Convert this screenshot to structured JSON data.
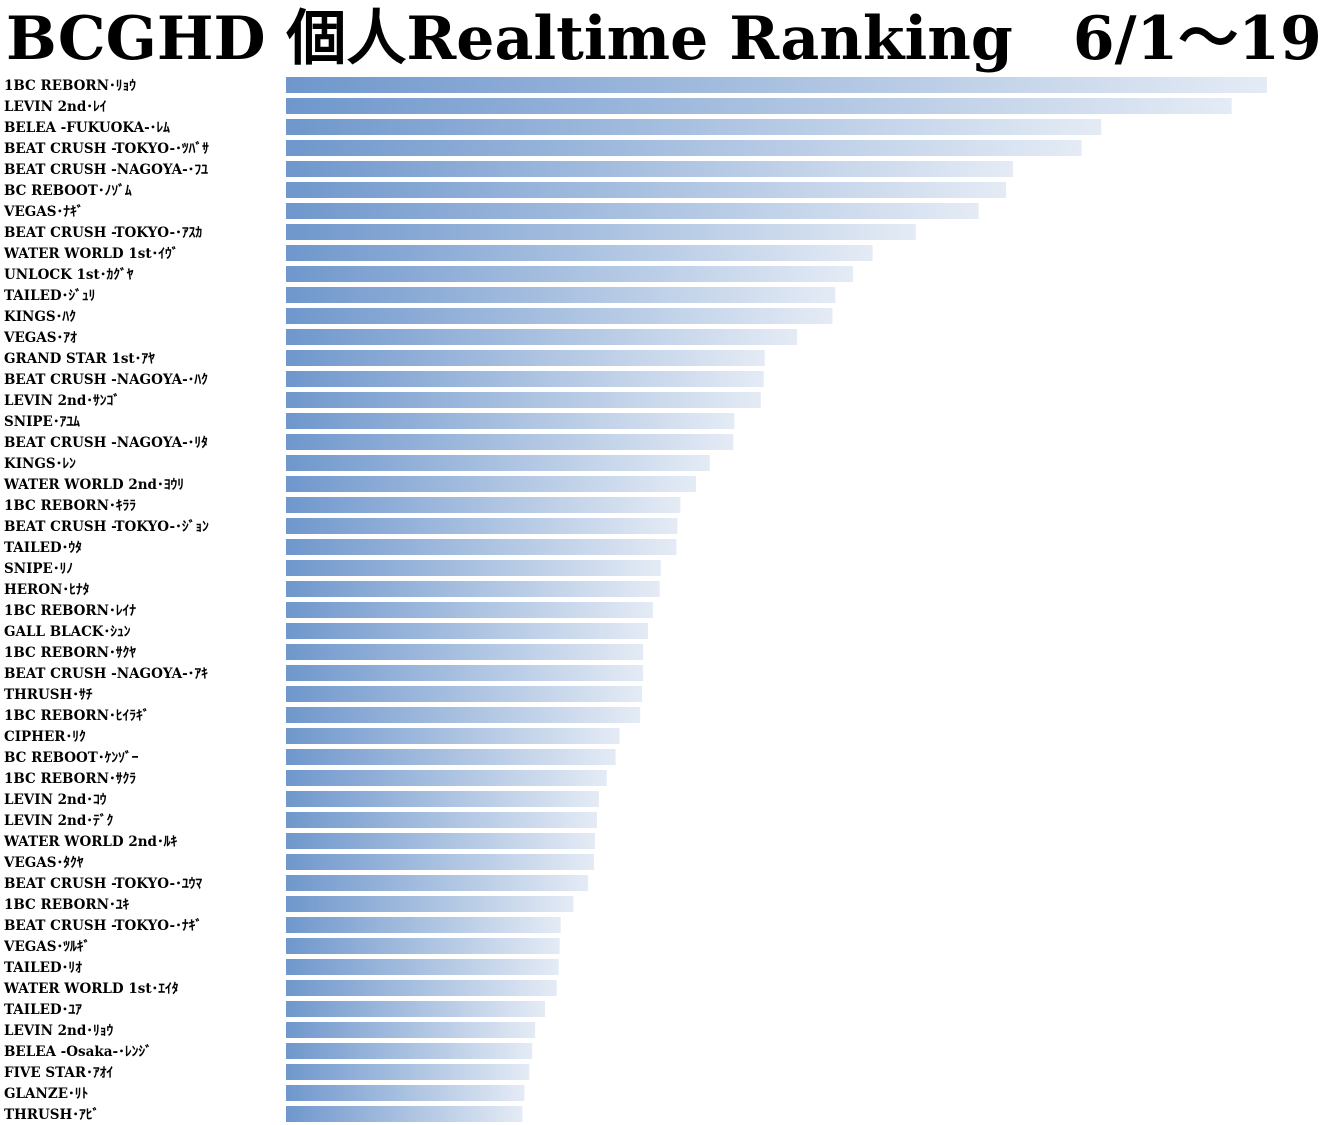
{
  "chart_data": {
    "type": "bar",
    "orientation": "horizontal",
    "title": "BCGHD 個人Realtime Ranking　6/1～19",
    "bar_gradient": [
      "#6f97cc",
      "#e4ebf5"
    ],
    "grid": false,
    "legend": "none",
    "xlim": [
      0,
      100
    ],
    "categories": [
      "1BC REBORN･ﾘｮｳ",
      "LEVIN 2nd･ﾚｲ",
      "BELEA -FUKUOKA-･ﾚﾑ",
      "BEAT CRUSH -TOKYO-･ﾂﾊﾞｻ",
      "BEAT CRUSH -NAGOYA-･ﾌﾕ",
      "BC REBOOT･ﾉｿﾞﾑ",
      "VEGAS･ﾅｷﾞ",
      "BEAT CRUSH -TOKYO-･ｱｽｶ",
      "WATER WORLD 1st･ｲｳﾞ",
      "UNLOCK 1st･ｶｸﾞﾔ",
      "TAILED･ｼﾞｭﾘ",
      "KINGS･ﾊｸ",
      "VEGAS･ｱｵ",
      "GRAND STAR 1st･ｱﾔ",
      "BEAT CRUSH -NAGOYA-･ﾊｸ",
      "LEVIN 2nd･ｻﾝｺﾞ",
      "SNIPE･ｱﾕﾑ",
      "BEAT CRUSH -NAGOYA-･ﾘﾀ",
      "KINGS･ﾚﾝ",
      "WATER WORLD 2nd･ﾖｳﾘ",
      "1BC REBORN･ｷﾗﾗ",
      "BEAT CRUSH -TOKYO-･ｼﾞｮﾝ",
      "TAILED･ｳﾀ",
      "SNIPE･ﾘﾉ",
      "HERON･ﾋﾅﾀ",
      "1BC REBORN･ﾚｲﾅ",
      "GALL BLACK･ｼｭﾝ",
      "1BC REBORN･ｻｸﾔ",
      "BEAT CRUSH -NAGOYA-･ｱｷ",
      "THRUSH･ｻﾁ",
      "1BC REBORN･ﾋｲﾗｷﾞ",
      "CIPHER･ﾘｸ",
      "BC REBOOT･ｹﾝｿﾞｰ",
      "1BC REBORN･ｻｸﾗ",
      "LEVIN 2nd･ｺｳ",
      "LEVIN 2nd･ﾃﾞｸ",
      "WATER WORLD 2nd･ﾙｷ",
      "VEGAS･ﾀｸﾔ",
      "BEAT CRUSH -TOKYO-･ﾕｳﾏ",
      "1BC REBORN･ﾕｷ",
      "BEAT CRUSH -TOKYO-･ﾅｷﾞ",
      "VEGAS･ﾂﾙｷﾞ",
      "TAILED･ﾘｵ",
      "WATER WORLD 1st･ｴｲﾀ",
      "TAILED･ﾕｱ",
      "LEVIN 2nd･ﾘｮｳ",
      "BELEA -Osaka-･ﾚﾝｼﾞ",
      "FIVE STAR･ｱｵｲ",
      "GLANZE･ﾘﾄ",
      "THRUSH･ｱﾋﾞ"
    ],
    "values": [
      100.0,
      96.4,
      83.1,
      81.1,
      74.1,
      73.4,
      70.6,
      64.2,
      59.8,
      57.8,
      56.0,
      55.7,
      52.1,
      48.8,
      48.7,
      48.4,
      45.7,
      45.6,
      43.2,
      41.8,
      40.2,
      39.9,
      39.8,
      38.2,
      38.1,
      37.4,
      36.9,
      36.4,
      36.4,
      36.3,
      36.1,
      34.0,
      33.6,
      32.7,
      31.9,
      31.7,
      31.5,
      31.4,
      30.8,
      29.3,
      28.0,
      27.9,
      27.8,
      27.6,
      26.4,
      25.4,
      25.1,
      24.8,
      24.3,
      24.1
    ]
  }
}
